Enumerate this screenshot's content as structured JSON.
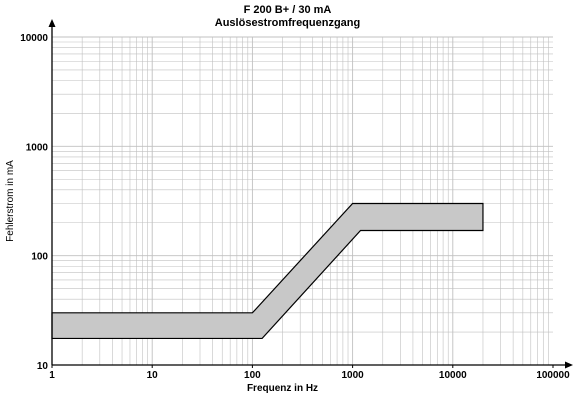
{
  "chart_data": {
    "type": "area",
    "title": "F 200 B+ / 30 mA",
    "subtitle": "Auslösestromfrequenzgang",
    "xlabel": "Frequenz in Hz",
    "ylabel": "Fehlerstrom in mA",
    "x_scale": "log",
    "y_scale": "log",
    "xlim": [
      1,
      100000
    ],
    "ylim": [
      10,
      10000
    ],
    "grid": true,
    "x_ticks": [
      1,
      10,
      100,
      1000,
      10000,
      100000
    ],
    "x_tick_labels": [
      "1",
      "10",
      "100",
      "1000",
      "10000",
      "100000"
    ],
    "y_ticks": [
      10,
      100,
      1000,
      10000
    ],
    "y_tick_labels": [
      "10",
      "100",
      "1000",
      "10000"
    ],
    "band": {
      "upper": [
        [
          1,
          30
        ],
        [
          100,
          30
        ],
        [
          1000,
          300
        ],
        [
          20000,
          300
        ]
      ],
      "lower": [
        [
          1,
          17.5
        ],
        [
          125,
          17.5
        ],
        [
          1200,
          170
        ],
        [
          20000,
          170
        ]
      ],
      "fill_color": "#c8c8c8",
      "edge_color": "#000000"
    }
  },
  "colors": {
    "background": "#ffffff",
    "grid": "#c0c0c0",
    "axis": "#000000",
    "band_fill": "#c8c8c8"
  }
}
